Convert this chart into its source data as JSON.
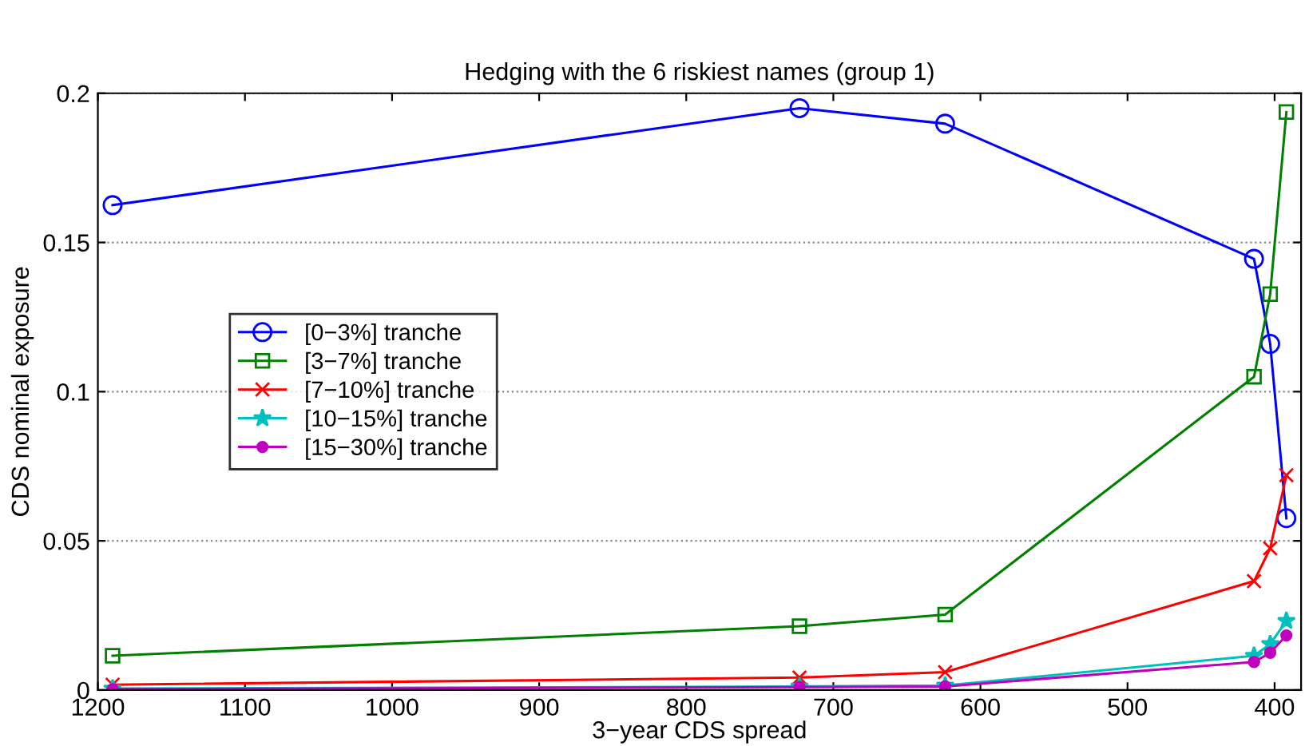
{
  "chart_data": {
    "type": "line",
    "title": "Hedging with the 6 riskiest names (group 1)",
    "xlabel": "3−year CDS spread",
    "ylabel": "CDS nominal exposure",
    "x": [
      1190,
      723,
      624,
      414,
      403,
      392
    ],
    "series": [
      {
        "name": "[0−3%] tranche",
        "color": "#0000ff",
        "marker": "circle",
        "values": [
          0.1625,
          0.195,
          0.1898,
          0.1445,
          0.116,
          0.0576
        ]
      },
      {
        "name": "[3−7%] tranche",
        "color": "#008000",
        "marker": "square",
        "values": [
          0.0115,
          0.0214,
          0.0253,
          0.105,
          0.1327,
          0.1937
        ]
      },
      {
        "name": "[7−10%] tranche",
        "color": "#ff0000",
        "marker": "cross",
        "values": [
          0.0018,
          0.0042,
          0.006,
          0.0365,
          0.0475,
          0.072
        ]
      },
      {
        "name": "[10−15%] tranche",
        "color": "#00bfbf",
        "marker": "star",
        "values": [
          0.0005,
          0.0012,
          0.0015,
          0.0115,
          0.0154,
          0.0232
        ]
      },
      {
        "name": "[15−30%] tranche",
        "color": "#bf00bf",
        "marker": "dot",
        "values": [
          0.0003,
          0.001,
          0.0012,
          0.0094,
          0.0125,
          0.0183
        ]
      }
    ],
    "xlim": [
      1200,
      382
    ],
    "xticks": [
      1200,
      1100,
      1000,
      900,
      800,
      700,
      600,
      500,
      400
    ],
    "ylim": [
      0,
      0.2
    ],
    "yticks": [
      0,
      0.05,
      0.1,
      0.15,
      0.2
    ],
    "grid": "y",
    "legend": "left",
    "line_style": "solid"
  }
}
